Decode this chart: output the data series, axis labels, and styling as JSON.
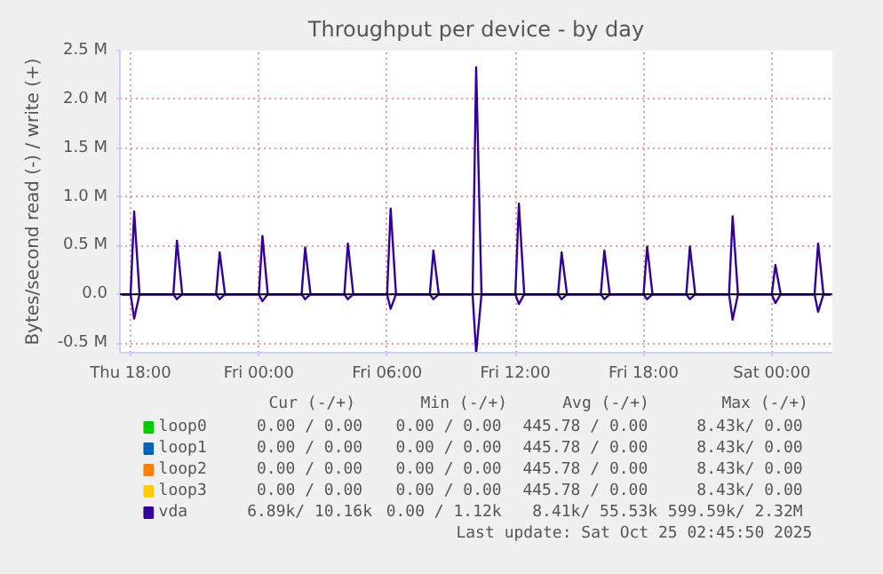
{
  "chart_data": {
    "type": "line",
    "title": "Throughput per device - by day",
    "ylabel": "Bytes/second read (-) / write (+)",
    "x": [
      "2025-10-23T17:35",
      "2025-10-23T18:00",
      "2025-10-23T18:10",
      "2025-10-23T18:25",
      "2025-10-23T20:00",
      "2025-10-23T20:10",
      "2025-10-23T20:25",
      "2025-10-23T22:00",
      "2025-10-23T22:10",
      "2025-10-23T22:25",
      "2025-10-24T00:00",
      "2025-10-24T00:10",
      "2025-10-24T00:25",
      "2025-10-24T02:00",
      "2025-10-24T02:10",
      "2025-10-24T02:25",
      "2025-10-24T04:00",
      "2025-10-24T04:10",
      "2025-10-24T04:25",
      "2025-10-24T06:00",
      "2025-10-24T06:10",
      "2025-10-24T06:25",
      "2025-10-24T08:00",
      "2025-10-24T08:10",
      "2025-10-24T08:25",
      "2025-10-24T10:00",
      "2025-10-24T10:10",
      "2025-10-24T10:25",
      "2025-10-24T12:00",
      "2025-10-24T12:10",
      "2025-10-24T12:25",
      "2025-10-24T14:00",
      "2025-10-24T14:10",
      "2025-10-24T14:25",
      "2025-10-24T16:00",
      "2025-10-24T16:10",
      "2025-10-24T16:25",
      "2025-10-24T18:00",
      "2025-10-24T18:10",
      "2025-10-24T18:25",
      "2025-10-24T20:00",
      "2025-10-24T20:10",
      "2025-10-24T20:25",
      "2025-10-24T22:00",
      "2025-10-24T22:10",
      "2025-10-24T22:25",
      "2025-10-25T00:00",
      "2025-10-25T00:10",
      "2025-10-25T00:25",
      "2025-10-25T02:00",
      "2025-10-25T02:10",
      "2025-10-25T02:25",
      "2025-10-25T02:45"
    ],
    "series": [
      {
        "name": "loop0",
        "color": "#00cc00",
        "values": [
          null,
          null,
          null,
          null,
          null,
          null,
          null,
          null,
          null,
          null,
          null,
          null,
          null,
          null,
          null,
          null,
          null,
          null,
          null,
          null,
          null,
          null,
          null,
          null,
          null,
          null,
          null,
          null,
          null,
          null,
          null,
          null,
          null,
          null,
          null,
          null,
          null,
          null,
          null,
          null,
          null,
          null,
          null,
          null,
          null,
          null,
          null,
          null,
          null,
          null,
          null,
          null,
          null
        ]
      },
      {
        "name": "loop1",
        "color": "#0066b3",
        "values": [
          null,
          null,
          null,
          null,
          null,
          null,
          null,
          null,
          null,
          null,
          null,
          null,
          null,
          null,
          null,
          null,
          null,
          null,
          null,
          null,
          null,
          null,
          null,
          null,
          null,
          null,
          null,
          null,
          null,
          null,
          null,
          null,
          null,
          null,
          null,
          null,
          null,
          null,
          null,
          null,
          null,
          null,
          null,
          null,
          null,
          null,
          null,
          null,
          null,
          null,
          null,
          null,
          null
        ]
      },
      {
        "name": "loop2",
        "color": "#ff8000",
        "values": [
          null,
          null,
          null,
          null,
          null,
          null,
          null,
          null,
          null,
          null,
          null,
          null,
          null,
          null,
          null,
          null,
          null,
          null,
          null,
          null,
          null,
          null,
          null,
          null,
          null,
          null,
          null,
          null,
          null,
          null,
          null,
          null,
          null,
          null,
          null,
          null,
          null,
          null,
          null,
          null,
          null,
          null,
          null,
          null,
          null,
          null,
          null,
          null,
          null,
          null,
          null,
          null,
          null
        ]
      },
      {
        "name": "loop3",
        "color": "#ffcc00",
        "values": [
          null,
          null,
          null,
          null,
          null,
          null,
          null,
          null,
          null,
          null,
          null,
          null,
          null,
          null,
          null,
          null,
          null,
          null,
          null,
          null,
          null,
          null,
          null,
          null,
          null,
          null,
          null,
          null,
          null,
          null,
          null,
          null,
          null,
          null,
          null,
          null,
          null,
          null,
          null,
          null,
          null,
          null,
          null,
          null,
          null,
          null,
          null,
          null,
          null,
          null,
          null,
          null,
          null
        ]
      },
      {
        "name": "vda",
        "color": "#330099",
        "values": [
          0,
          0,
          0.85,
          0,
          0,
          0.55,
          0,
          0,
          0.43,
          0,
          0,
          0.6,
          0,
          0,
          0.48,
          0,
          0,
          0.52,
          0,
          0,
          0.88,
          0,
          0,
          0.45,
          0,
          0,
          2.33,
          0,
          0,
          0.93,
          0,
          0,
          0.43,
          0,
          0,
          0.45,
          0,
          0,
          0.49,
          0,
          0,
          0.49,
          0,
          0,
          0.8,
          0,
          0,
          0.3,
          0,
          0,
          0.52,
          0,
          0
        ]
      },
      {
        "color": "#330099",
        "values": [
          0,
          0,
          -0.25,
          0,
          0,
          -0.05,
          0,
          0,
          -0.05,
          0,
          0,
          -0.07,
          0,
          0,
          -0.05,
          0,
          0,
          -0.05,
          0,
          0,
          -0.15,
          0,
          0,
          -0.05,
          0,
          0,
          -0.6,
          0,
          0,
          -0.1,
          0,
          0,
          -0.05,
          0,
          0,
          -0.05,
          0,
          0,
          -0.05,
          0,
          0,
          -0.05,
          0,
          0,
          -0.26,
          0,
          0,
          -0.09,
          0,
          0,
          -0.18,
          0,
          0
        ]
      }
    ],
    "xlim": [
      "2025-10-23T17:30",
      "2025-10-25T02:50"
    ],
    "xticks": [
      {
        "value": "2025-10-23T18:00",
        "label": "Thu 18:00"
      },
      {
        "value": "2025-10-24T00:00",
        "label": "Fri 00:00"
      },
      {
        "value": "2025-10-24T06:00",
        "label": "Fri 06:00"
      },
      {
        "value": "2025-10-24T12:00",
        "label": "Fri 12:00"
      },
      {
        "value": "2025-10-24T18:00",
        "label": "Fri 18:00"
      },
      {
        "value": "2025-10-25T00:00",
        "label": "Sat 00:00"
      }
    ],
    "ylim": [
      -0.6,
      2.5
    ],
    "yticks": [
      {
        "value": -0.5,
        "label": "-0.5 M"
      },
      {
        "value": 0,
        "label": "0.0"
      },
      {
        "value": 0.5,
        "label": "0.5 M"
      },
      {
        "value": 1.0,
        "label": "1.0 M"
      },
      {
        "value": 1.5,
        "label": "1.5 M"
      },
      {
        "value": 2.0,
        "label": "2.0 M"
      },
      {
        "value": 2.5,
        "label": "2.5 M"
      }
    ],
    "ref_lines": [
      {
        "axis": "y",
        "value": 0,
        "color": "#000000"
      }
    ],
    "grid": true,
    "legend": "bottom",
    "marker": "none",
    "line_style": "solid",
    "annotations": [
      "Cur (-/+)",
      "Min (-/+)",
      "Avg (-/+)",
      "Max (-/+)",
      "0.00 /  0.00",
      "0.00 /  0.00",
      "445.78 /  0.00",
      "8.43k/  0.00",
      "0.00 /  0.00",
      "0.00 /  0.00",
      "445.78 /  0.00",
      "8.43k/  0.00",
      "0.00 /  0.00",
      "0.00 /  0.00",
      "445.78 /  0.00",
      "8.43k/  0.00",
      "0.00 /  0.00",
      "0.00 /  0.00",
      "445.78 /  0.00",
      "8.43k/  0.00",
      "6.89k/ 10.16k",
      "0.00 /  1.12k",
      "8.41k/ 55.53k",
      "599.59k/  2.32M",
      "Last update: Sat Oct 25 02:45:50 2025"
    ]
  }
}
